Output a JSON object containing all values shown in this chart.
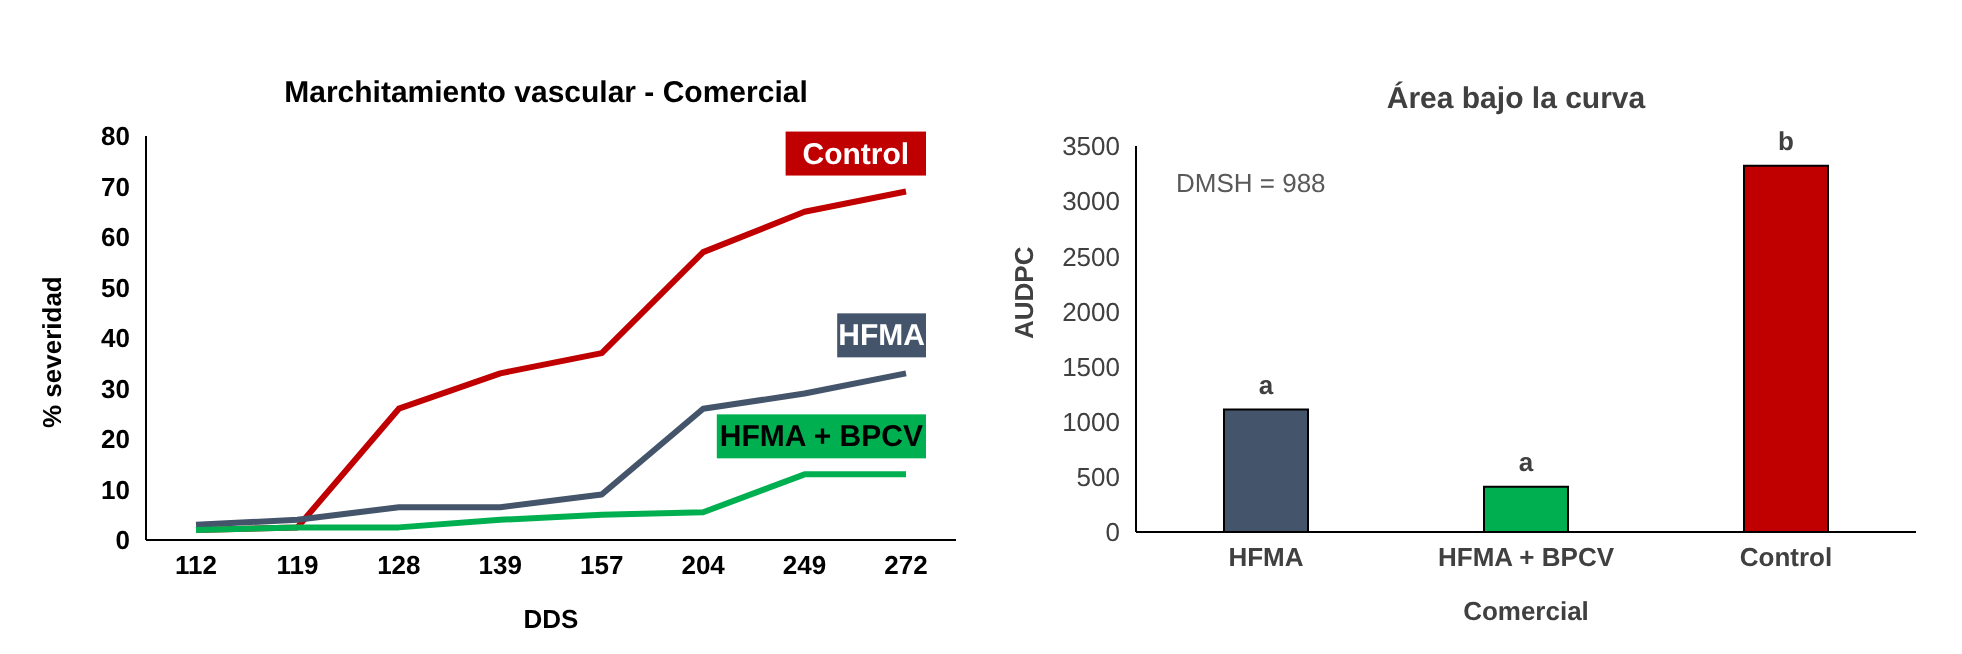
{
  "chart_data": [
    {
      "type": "line",
      "title": "Marchitamiento vascular - Comercial",
      "xlabel": "DDS",
      "ylabel": "% severidad",
      "categories": [
        "112",
        "119",
        "128",
        "139",
        "157",
        "204",
        "249",
        "272"
      ],
      "ylim": [
        0,
        80
      ],
      "yticks": [
        0,
        10,
        20,
        30,
        40,
        50,
        60,
        70,
        80
      ],
      "grid": false,
      "legend": false,
      "marker": "none",
      "line_style": "solid",
      "series": [
        {
          "name": "Control",
          "color": "#c00000",
          "values": [
            2,
            2.5,
            26,
            33,
            37,
            57,
            65,
            69
          ]
        },
        {
          "name": "HFMA",
          "color": "#44546a",
          "values": [
            3,
            4,
            6.5,
            6.5,
            9,
            26,
            29,
            33
          ]
        },
        {
          "name": "HFMA + BPCV",
          "color": "#00b050",
          "values": [
            2,
            2.5,
            2.5,
            4,
            5,
            5.5,
            13,
            13
          ]
        }
      ]
    },
    {
      "type": "bar",
      "title": "Área bajo la curva",
      "xlabel": "Comercial",
      "ylabel": "AUDPC",
      "categories": [
        "HFMA",
        "HFMA + BPCV",
        "Control"
      ],
      "values": [
        1110,
        410,
        3320
      ],
      "colors": [
        "#44546a",
        "#00b050",
        "#c00000"
      ],
      "ylim": [
        0,
        3500
      ],
      "yticks": [
        0,
        500,
        1000,
        1500,
        2000,
        2500,
        3000,
        3500
      ],
      "grid": false,
      "legend": false,
      "annotations": [
        "DMSH = 988",
        {
          "text": "a",
          "x": "HFMA",
          "y": 1110
        },
        {
          "text": "a",
          "x": "HFMA + BPCV",
          "y": 410
        },
        {
          "text": "b",
          "x": "Control",
          "y": 3320
        }
      ]
    }
  ]
}
